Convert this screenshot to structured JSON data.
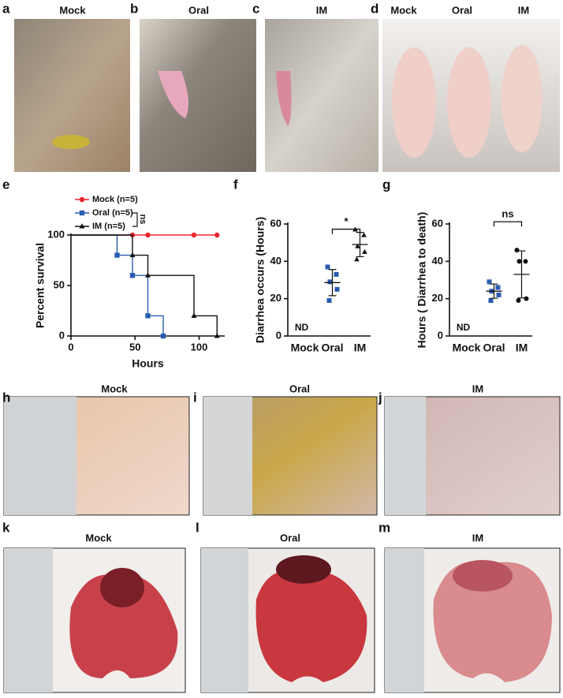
{
  "photo_panels": [
    {
      "label": "a",
      "title": "Mock"
    },
    {
      "label": "b",
      "title": "Oral"
    },
    {
      "label": "c",
      "title": "IM"
    },
    {
      "label": "d",
      "titles": [
        "Mock",
        "Oral",
        "IM"
      ]
    },
    {
      "label": "h",
      "title": "Mock"
    },
    {
      "label": "i",
      "title": "Oral"
    },
    {
      "label": "j",
      "title": "IM"
    },
    {
      "label": "k",
      "title": "Mock"
    },
    {
      "label": "l",
      "title": "Oral"
    },
    {
      "label": "m",
      "title": "IM"
    }
  ],
  "chart_data": [
    {
      "type": "survival",
      "label": "e",
      "xlabel": "Hours",
      "ylabel": "Percent survival",
      "xlim": [
        0,
        120
      ],
      "xticks": [
        0,
        50,
        100
      ],
      "ylim": [
        0,
        100
      ],
      "yticks": [
        0,
        50,
        100
      ],
      "annotation": "ns",
      "series": [
        {
          "name": "Mock (n=5)",
          "color": "#e8262b",
          "marker": "circle",
          "x": [
            0,
            48,
            60,
            96,
            114
          ],
          "values": [
            100,
            100,
            100,
            100,
            100
          ]
        },
        {
          "name": "Oral (n=5)",
          "color": "#2a5db0",
          "marker": "square",
          "x": [
            0,
            36,
            48,
            60,
            72
          ],
          "values": [
            100,
            80,
            60,
            20,
            0
          ]
        },
        {
          "name": "IM (n=5)",
          "color": "#111111",
          "marker": "triangle",
          "x": [
            0,
            48,
            60,
            96,
            114
          ],
          "values": [
            100,
            80,
            60,
            20,
            0
          ]
        }
      ]
    },
    {
      "type": "dot",
      "label": "f",
      "ylabel": "Diarrhea occurs (Hours)",
      "ylim": [
        0,
        60
      ],
      "yticks": [
        0,
        20,
        40,
        60
      ],
      "annotation": "*",
      "groups": [
        {
          "category": "Mock",
          "note": "ND",
          "values": []
        },
        {
          "category": "Oral",
          "color": "#2a5db0",
          "marker": "square",
          "values": [
            37,
            33,
            29,
            25,
            19
          ],
          "mean": 28.6,
          "sd": 7.0
        },
        {
          "category": "IM",
          "color": "#111111",
          "marker": "triangle",
          "values": [
            57,
            54,
            48,
            45,
            41
          ],
          "mean": 49,
          "sd": 6.5
        }
      ]
    },
    {
      "type": "dot",
      "label": "g",
      "ylabel": "Hours ( Diarrhea to death)",
      "ylim": [
        0,
        60
      ],
      "yticks": [
        0,
        20,
        40,
        60
      ],
      "annotation": "ns",
      "groups": [
        {
          "category": "Mock",
          "note": "ND",
          "values": []
        },
        {
          "category": "Oral",
          "color": "#2a5db0",
          "marker": "square",
          "values": [
            29,
            26,
            24,
            22,
            19
          ],
          "mean": 24,
          "sd": 3.8
        },
        {
          "category": "IM",
          "color": "#111111",
          "marker": "circle",
          "values": [
            46,
            40,
            40,
            20,
            19
          ],
          "mean": 33,
          "sd": 12.6
        }
      ]
    }
  ]
}
